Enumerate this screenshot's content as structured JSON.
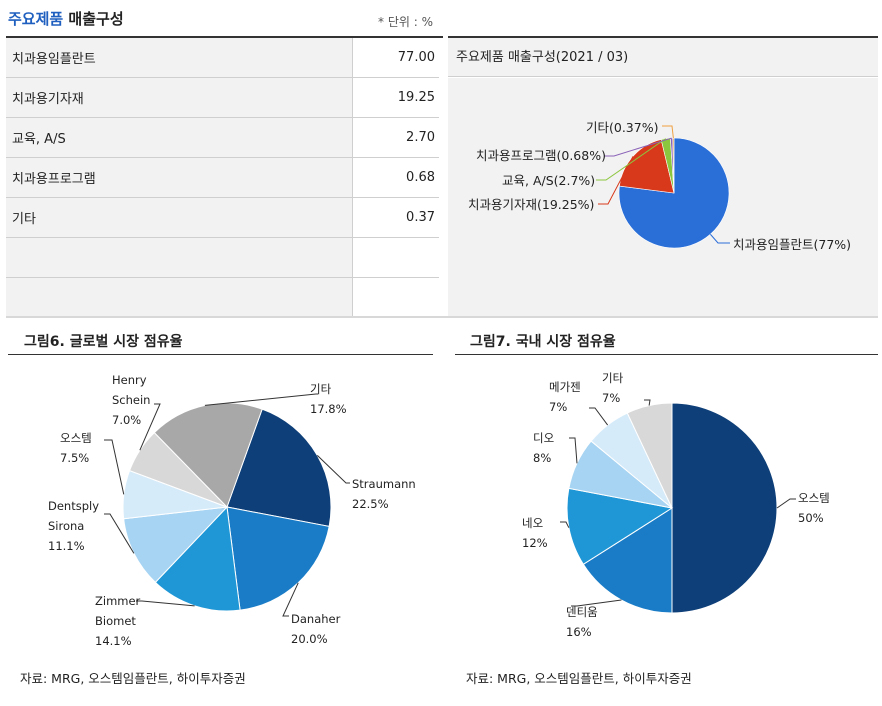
{
  "header": {
    "title_accent": "주요제품",
    "title_rest": " 매출구성",
    "unit": "* 단위 : %"
  },
  "table": {
    "rows": [
      {
        "label": "치과용임플란트",
        "value": "77.00"
      },
      {
        "label": "치과용기자재",
        "value": "19.25"
      },
      {
        "label": "교육, A/S",
        "value": "2.70"
      },
      {
        "label": "치과용프로그램",
        "value": "0.68"
      },
      {
        "label": "기타",
        "value": "0.37"
      },
      {
        "label": "",
        "value": ""
      },
      {
        "label": "",
        "value": ""
      }
    ]
  },
  "colors": {
    "blue": "#2a6ed8",
    "red": "#d8391a",
    "green": "#8cc63e",
    "purple": "#8a62b8",
    "orange": "#f0a040",
    "navy": "#0e3f78",
    "mid_blue": "#1a7cc6",
    "light_blue": "#1f97d6",
    "pale_blue": "#a7d4f2",
    "paler_blue": "#d6ebfa",
    "gray1": "#d8d8d8",
    "gray2": "#a8a8a8"
  },
  "chart_data": [
    {
      "type": "pie",
      "title": "주요제품 매출구성(2021 / 03)",
      "slices": [
        {
          "label": "치과용임플란트(77%)",
          "value": 77.0,
          "color": "#2a6ed8"
        },
        {
          "label": "치과용기자재(19.25%)",
          "value": 19.25,
          "color": "#d8391a"
        },
        {
          "label": "교육, A/S(2.7%)",
          "value": 2.7,
          "color": "#8cc63e"
        },
        {
          "label": "치과용프로그램(0.68%)",
          "value": 0.68,
          "color": "#8a62b8"
        },
        {
          "label": "기타(0.37%)",
          "value": 0.37,
          "color": "#f0a040"
        }
      ]
    },
    {
      "type": "pie",
      "title": "그림6. 글로벌 시장 점유율",
      "slices": [
        {
          "label": [
            "Straumann",
            "22.5%"
          ],
          "value": 22.5,
          "color": "#0e3f78"
        },
        {
          "label": [
            "Danaher",
            "20.0%"
          ],
          "value": 20.0,
          "color": "#1a7cc6"
        },
        {
          "label": [
            "Zimmer",
            "Biomet",
            "14.1%"
          ],
          "value": 14.1,
          "color": "#1f97d6"
        },
        {
          "label": [
            "Dentsply",
            "Sirona",
            "11.1%"
          ],
          "value": 11.1,
          "color": "#a7d4f2"
        },
        {
          "label": [
            "오스템",
            "7.5%"
          ],
          "value": 7.5,
          "color": "#d6ebfa"
        },
        {
          "label": [
            "Henry",
            "Schein",
            "7.0%"
          ],
          "value": 7.0,
          "color": "#d8d8d8"
        },
        {
          "label": [
            "기타",
            "17.8%"
          ],
          "value": 17.8,
          "color": "#a8a8a8"
        }
      ],
      "source": "자료: MRG, 오스템임플란트, 하이투자증권"
    },
    {
      "type": "pie",
      "title": "그림7. 국내 시장 점유율",
      "slices": [
        {
          "label": [
            "오스템",
            "50%"
          ],
          "value": 50,
          "color": "#0e3f78"
        },
        {
          "label": [
            "덴티움",
            "16%"
          ],
          "value": 16,
          "color": "#1a7cc6"
        },
        {
          "label": [
            "네오",
            "12%"
          ],
          "value": 12,
          "color": "#1f97d6"
        },
        {
          "label": [
            "디오",
            "8%"
          ],
          "value": 8,
          "color": "#a7d4f2"
        },
        {
          "label": [
            "메가젠",
            "7%"
          ],
          "value": 7,
          "color": "#d6ebfa"
        },
        {
          "label": [
            "기타",
            "7%"
          ],
          "value": 7,
          "color": "#d8d8d8"
        }
      ],
      "source": "자료: MRG, 오스템임플란트, 하이투자증권"
    }
  ]
}
